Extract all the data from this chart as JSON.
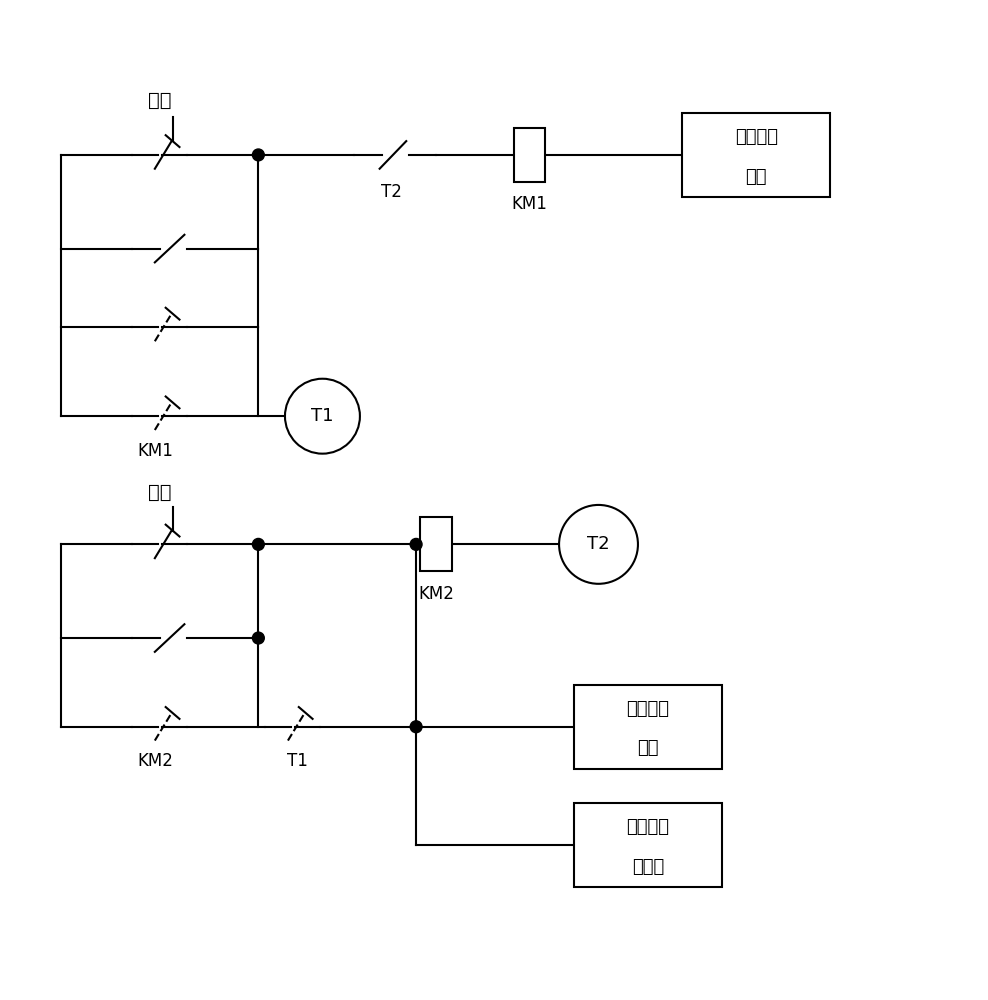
{
  "bg_color": "#ffffff",
  "line_color": "#000000",
  "line_width": 1.5,
  "fig_width": 9.88,
  "fig_height": 10.0,
  "labels": {
    "qidong": "启动",
    "tingzhi": "停止",
    "T1": "T1",
    "T2": "T2",
    "KM1": "KM1",
    "KM2": "KM2",
    "box1_line1": "第一变频",
    "box1_line2": "电机",
    "box2_line1": "第二变频",
    "box2_line2": "电机",
    "box3_line1": "高压静电",
    "box3_line2": "发生器"
  }
}
